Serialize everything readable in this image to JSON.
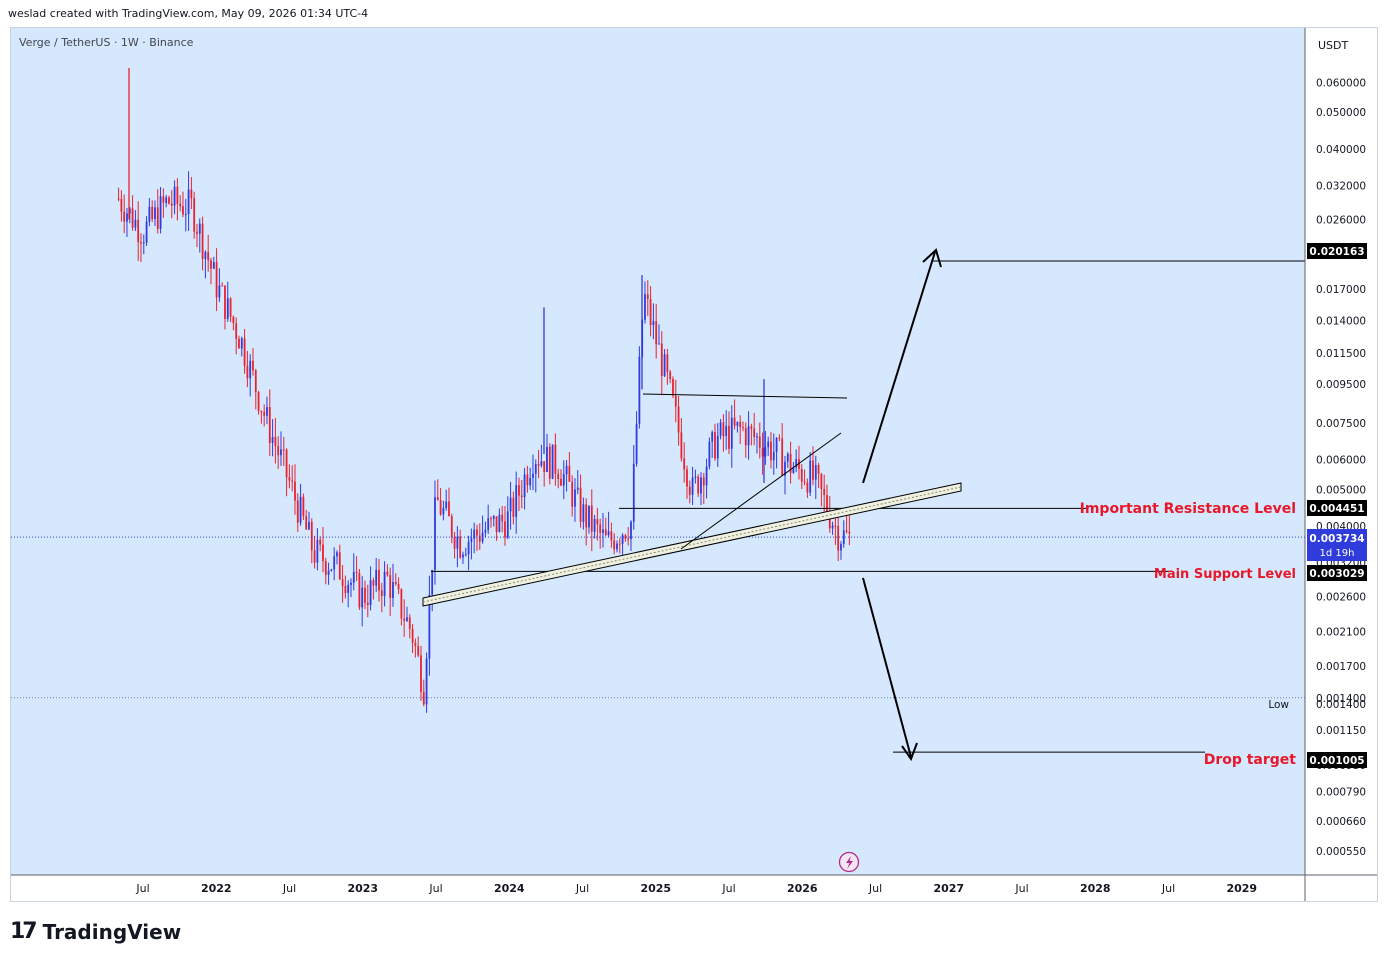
{
  "header": {
    "attribution": "weslad created with TradingView.com, May 09, 2026 01:34 UTC-4"
  },
  "footer": {
    "logo_mark": "17",
    "logo_text": "TradingView"
  },
  "colors": {
    "background": "#d6e8fd",
    "up": "#2f3bdb",
    "down": "#e8232e",
    "annotation_red": "#e8182a",
    "current_price": "#2f3bdb"
  },
  "chart_data": {
    "type": "candlestick",
    "symbol_label": "Verge / TetherUS · 1W · Binance",
    "currency": "USDT",
    "y_scale": "log",
    "ylim": [
      0.00052,
      0.0655
    ],
    "x_ticks": [
      "Jul",
      "2022",
      "Jul",
      "2023",
      "Jul",
      "2024",
      "Jul",
      "2025",
      "Jul",
      "2026",
      "Jul",
      "2027",
      "Jul",
      "2028",
      "Jul",
      "2029"
    ],
    "y_ticks": [
      "0.060000",
      "0.050000",
      "0.040000",
      "0.032000",
      "0.026000",
      "0.021000",
      "0.017000",
      "0.014000",
      "0.011500",
      "0.009500",
      "0.007500",
      "0.006000",
      "0.005000",
      "0.004000",
      "0.003200",
      "0.002600",
      "0.002100",
      "0.001700",
      "0.001400",
      "0.001150",
      "0.000930",
      "0.000790",
      "0.000660",
      "0.000550"
    ],
    "price_labels": {
      "target_up": "0.020163",
      "resistance": "0.004451",
      "current": "0.003734",
      "countdown": "1d 19h",
      "support": "0.003029",
      "low_label": "Low",
      "low": "0.001400",
      "drop": "0.001005"
    },
    "annotations": {
      "resistance_text": "Important Resistance Level",
      "support_text": "Main Support Level",
      "drop_text": "Drop target"
    },
    "trend_path": [
      [
        "2021-05",
        0.0295
      ],
      [
        "2021-07",
        0.024
      ],
      [
        "2021-09",
        0.029
      ],
      [
        "2021-11",
        0.028
      ],
      [
        "2022-01",
        0.0175
      ],
      [
        "2022-03",
        0.0125
      ],
      [
        "2022-05",
        0.0078
      ],
      [
        "2022-07",
        0.0052
      ],
      [
        "2022-09",
        0.0034
      ],
      [
        "2022-11",
        0.0031
      ],
      [
        "2023-01",
        0.0026
      ],
      [
        "2023-03",
        0.0029
      ],
      [
        "2023-05",
        0.0021
      ],
      [
        "2023-06",
        0.0015
      ],
      [
        "2023-07",
        0.0047
      ],
      [
        "2023-09",
        0.0036
      ],
      [
        "2023-11",
        0.0039
      ],
      [
        "2024-01",
        0.0042
      ],
      [
        "2024-03",
        0.0062
      ],
      [
        "2024-05",
        0.0058
      ],
      [
        "2024-07",
        0.0043
      ],
      [
        "2024-09",
        0.0036
      ],
      [
        "2024-11",
        0.0041
      ],
      [
        "2024-12",
        0.0165
      ],
      [
        "2025-02",
        0.0095
      ],
      [
        "2025-04",
        0.0049
      ],
      [
        "2025-06",
        0.0068
      ],
      [
        "2025-08",
        0.0072
      ],
      [
        "2025-10",
        0.0066
      ],
      [
        "2025-12",
        0.0058
      ],
      [
        "2026-02",
        0.0053
      ],
      [
        "2026-04",
        0.0038
      ],
      [
        "2026-05",
        0.0037
      ]
    ]
  }
}
